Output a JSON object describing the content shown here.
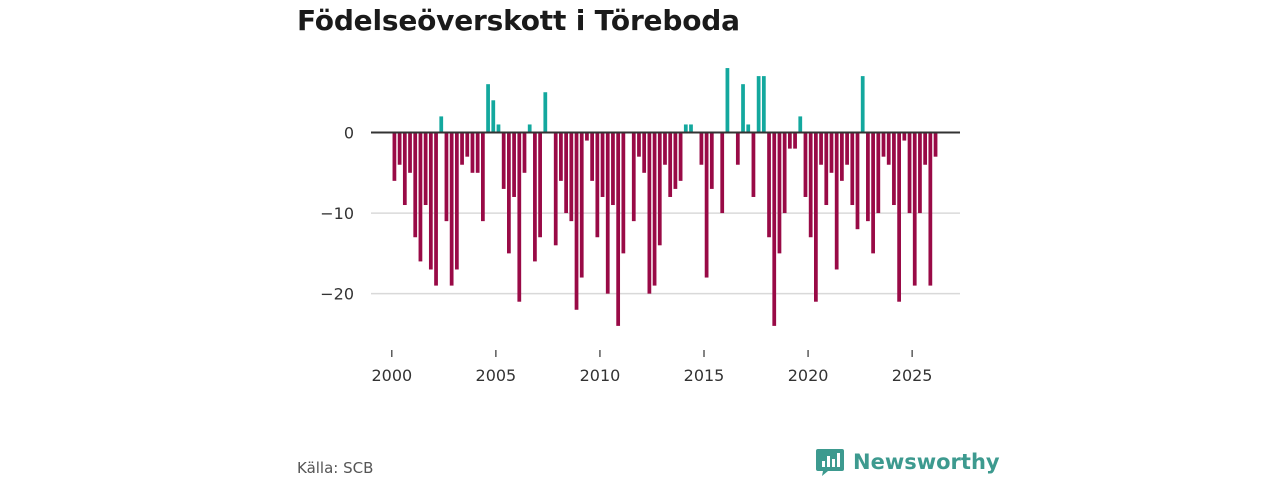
{
  "chart_data": {
    "type": "bar",
    "title": "Födelseöverskott i Töreboda",
    "xlabel": "",
    "ylabel": "",
    "x_start": 2000,
    "x_step_months": 3,
    "xlim": [
      1999.0,
      2027.3
    ],
    "ylim": [
      -26,
      9
    ],
    "yticks": [
      0,
      -10,
      -20
    ],
    "ytick_labels": [
      "0",
      "−10",
      "−20"
    ],
    "xticks": [
      2000,
      2005,
      2010,
      2015,
      2020,
      2025
    ],
    "xtick_labels": [
      "2000",
      "2005",
      "2010",
      "2015",
      "2020",
      "2025"
    ],
    "grid": true,
    "positive_color": "#13a89e",
    "negative_color": "#990a46",
    "values": [
      -6,
      -4,
      -9,
      -5,
      -13,
      -16,
      -9,
      -17,
      -19,
      2,
      -11,
      -19,
      -17,
      -4,
      -3,
      -5,
      -5,
      -11,
      6,
      4,
      1,
      -7,
      -15,
      -8,
      -21,
      -5,
      1,
      -16,
      -13,
      5,
      0,
      -14,
      -6,
      -10,
      -11,
      -22,
      -18,
      -1,
      -6,
      -13,
      -8,
      -20,
      -9,
      -24,
      -15,
      0,
      -11,
      -3,
      -5,
      -20,
      -19,
      -14,
      -4,
      -8,
      -7,
      -6,
      1,
      1,
      0,
      -4,
      -18,
      -7,
      0,
      -10,
      8,
      0,
      -4,
      6,
      1,
      -8,
      7,
      7,
      -13,
      -24,
      -15,
      -10,
      -2,
      -2,
      2,
      -8,
      -13,
      -21,
      -4,
      -9,
      -5,
      -17,
      -6,
      -4,
      -9,
      -12,
      7,
      -11,
      -15,
      -10,
      -3,
      -4,
      -9,
      -21,
      -1,
      -10,
      -19,
      -10,
      -4,
      -19,
      -3
    ]
  },
  "footer": {
    "source": "Källa: SCB",
    "brand": "Newsworthy",
    "brand_icon": "newsworthy-logo-icon"
  }
}
